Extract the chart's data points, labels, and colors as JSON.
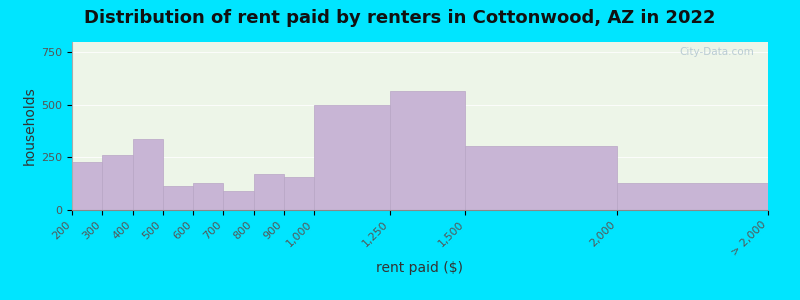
{
  "title": "Distribution of rent paid by renters in Cottonwood, AZ in 2022",
  "xlabel": "rent paid ($)",
  "ylabel": "households",
  "bin_edges": [
    200,
    300,
    400,
    500,
    600,
    700,
    800,
    900,
    1000,
    1250,
    1500,
    2000,
    2500
  ],
  "bin_values": [
    230,
    260,
    340,
    115,
    130,
    90,
    170,
    155,
    500,
    565,
    305,
    130
  ],
  "tick_positions": [
    200,
    300,
    400,
    500,
    600,
    700,
    800,
    900,
    1000,
    1250,
    1500,
    2000,
    2500
  ],
  "tick_labels": [
    "200",
    "300",
    "400",
    "500",
    "600",
    "700",
    "800",
    "900",
    "1,000",
    "1,250",
    "1,500",
    "2,000",
    "> 2,000"
  ],
  "bar_color": "#c8b5d5",
  "bar_edge_color": "#b8a5c5",
  "background_outer": "#00e5ff",
  "background_inner": "#edf5e8",
  "ylim": [
    0,
    800
  ],
  "yticks": [
    0,
    250,
    500,
    750
  ],
  "title_fontsize": 13,
  "axis_label_fontsize": 10,
  "tick_fontsize": 8,
  "watermark_text": "City-Data.com",
  "watermark_color": "#b0c4d0"
}
